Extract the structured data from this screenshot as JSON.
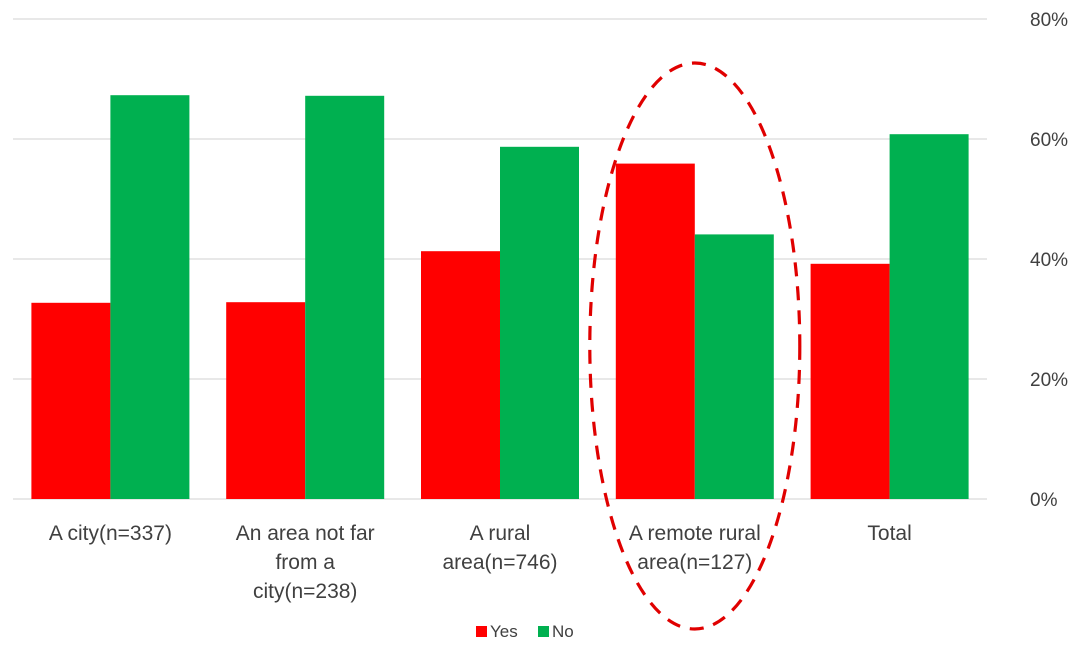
{
  "chart_data": {
    "type": "bar",
    "categories": [
      [
        "A city(n=337)"
      ],
      [
        "An area not far",
        "from a",
        "city(n=238)"
      ],
      [
        "A rural",
        "area(n=746)"
      ],
      [
        "A remote rural",
        "area(n=127)"
      ],
      [
        "Total"
      ]
    ],
    "series": [
      {
        "name": "Yes",
        "color": "#ff0000",
        "values": [
          32.7,
          32.8,
          41.3,
          55.9,
          39.2
        ]
      },
      {
        "name": "No",
        "color": "#00b050",
        "values": [
          67.3,
          67.2,
          58.7,
          44.1,
          60.8
        ]
      }
    ],
    "ylim": [
      0,
      80
    ],
    "y_ticks": [
      0,
      20,
      40,
      60,
      80
    ],
    "y_tick_format": "percent",
    "y_axis_side": "right",
    "grid": true,
    "legend_position": "bottom-center",
    "highlight": {
      "category_index": 3,
      "shape": "dashed-ellipse",
      "color": "#e00000"
    },
    "title": "",
    "xlabel": "",
    "ylabel": ""
  }
}
